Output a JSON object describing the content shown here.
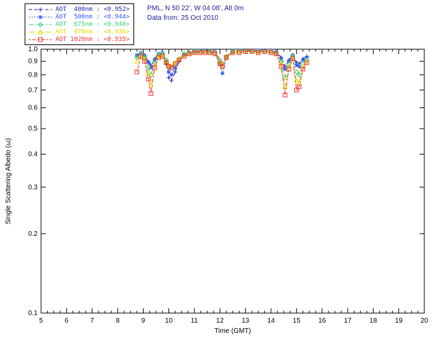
{
  "header": {
    "line1": "PML, N 50 22', W 04 08', Alt 0m",
    "line2": "Data from: 25 Oct 2010",
    "color": "#1d1d99"
  },
  "chart_data": {
    "type": "line",
    "title": "",
    "xlabel": "Time (GMT)",
    "ylabel": "Single Scattering Albedo (ω)",
    "xlim": [
      5,
      20
    ],
    "ylim": [
      0.1,
      1.0
    ],
    "yscale": "log",
    "grid": false,
    "legend_position": "top-left",
    "xticks": [
      5,
      6,
      7,
      8,
      9,
      10,
      11,
      12,
      13,
      14,
      15,
      16,
      17,
      18,
      19,
      20
    ],
    "yticks": [
      1.0,
      0.9,
      0.8,
      0.7,
      0.6,
      0.5,
      0.4,
      0.3,
      0.2,
      0.1
    ],
    "x": [
      8.75,
      8.9,
      9.05,
      9.2,
      9.3,
      9.45,
      9.6,
      9.75,
      9.9,
      10.0,
      10.1,
      10.25,
      10.4,
      10.6,
      10.8,
      11.0,
      11.2,
      11.4,
      11.6,
      11.8,
      12.0,
      12.1,
      12.25,
      12.5,
      12.75,
      13.0,
      13.25,
      13.5,
      13.75,
      14.0,
      14.2,
      14.4,
      14.55,
      14.7,
      14.85,
      15.0,
      15.1,
      15.25,
      15.4
    ],
    "series": [
      {
        "name": "AOT 400nm",
        "legend_label": "AOT  400nm : <0.952>",
        "mean": "<0.952>",
        "color": "#2222aa",
        "marker": "plus",
        "dash": "5,3",
        "values": [
          0.94,
          0.96,
          0.94,
          0.9,
          0.87,
          0.92,
          0.96,
          0.96,
          0.88,
          0.78,
          0.76,
          0.82,
          0.9,
          0.95,
          0.97,
          0.98,
          0.98,
          0.99,
          0.98,
          0.98,
          0.91,
          0.87,
          0.94,
          0.98,
          0.99,
          0.99,
          0.99,
          0.98,
          0.99,
          0.99,
          0.98,
          0.93,
          0.86,
          0.91,
          0.95,
          0.89,
          0.88,
          0.92,
          0.94
        ]
      },
      {
        "name": "AOT 500nm",
        "legend_label": "AOT  500nm : <0.944>",
        "mean": "<0.944>",
        "color": "#3355ff",
        "marker": "asterisk",
        "dash": "2,2",
        "values": [
          0.95,
          0.97,
          0.95,
          0.89,
          0.85,
          0.91,
          0.96,
          0.97,
          0.9,
          0.82,
          0.8,
          0.85,
          0.91,
          0.96,
          0.97,
          0.98,
          0.99,
          0.99,
          0.98,
          0.98,
          0.88,
          0.81,
          0.93,
          0.98,
          0.99,
          0.99,
          0.99,
          0.99,
          0.99,
          0.99,
          0.98,
          0.92,
          0.84,
          0.9,
          0.95,
          0.87,
          0.86,
          0.91,
          0.93
        ]
      },
      {
        "name": "AOT 675nm",
        "legend_label": "AOT  675nm : <0.940>",
        "mean": "<0.940>",
        "color": "#2fcf7f",
        "marker": "diamond",
        "dash": "7,3,2,3",
        "values": [
          0.93,
          0.96,
          0.93,
          0.85,
          0.8,
          0.89,
          0.95,
          0.96,
          0.91,
          0.86,
          0.85,
          0.88,
          0.92,
          0.96,
          0.97,
          0.98,
          0.98,
          0.98,
          0.98,
          0.97,
          0.9,
          0.86,
          0.94,
          0.98,
          0.98,
          0.99,
          0.98,
          0.98,
          0.98,
          0.98,
          0.97,
          0.9,
          0.78,
          0.88,
          0.94,
          0.82,
          0.8,
          0.88,
          0.91
        ]
      },
      {
        "name": "AOT 870nm",
        "legend_label": "AOT  870nm : <0.936>",
        "mean": "<0.936>",
        "color": "#e0e000",
        "marker": "triangle",
        "dash": "9,3",
        "values": [
          0.9,
          0.95,
          0.92,
          0.81,
          0.73,
          0.87,
          0.94,
          0.95,
          0.9,
          0.87,
          0.86,
          0.89,
          0.92,
          0.95,
          0.96,
          0.97,
          0.98,
          0.98,
          0.97,
          0.97,
          0.89,
          0.87,
          0.94,
          0.97,
          0.98,
          0.98,
          0.98,
          0.98,
          0.98,
          0.98,
          0.96,
          0.88,
          0.72,
          0.86,
          0.93,
          0.76,
          0.75,
          0.86,
          0.9
        ]
      },
      {
        "name": "AOT 1020nm",
        "legend_label": "AOT 1020nm : <0.935>",
        "mean": "<0.935>",
        "color": "#f03030",
        "marker": "square",
        "dash": "3,2,6,2",
        "values": [
          0.82,
          0.94,
          0.9,
          0.77,
          0.68,
          0.85,
          0.93,
          0.94,
          0.89,
          0.86,
          0.85,
          0.88,
          0.91,
          0.94,
          0.96,
          0.97,
          0.97,
          0.97,
          0.97,
          0.96,
          0.88,
          0.86,
          0.93,
          0.97,
          0.97,
          0.98,
          0.98,
          0.97,
          0.98,
          0.97,
          0.96,
          0.86,
          0.67,
          0.84,
          0.92,
          0.7,
          0.72,
          0.84,
          0.89
        ]
      }
    ]
  }
}
